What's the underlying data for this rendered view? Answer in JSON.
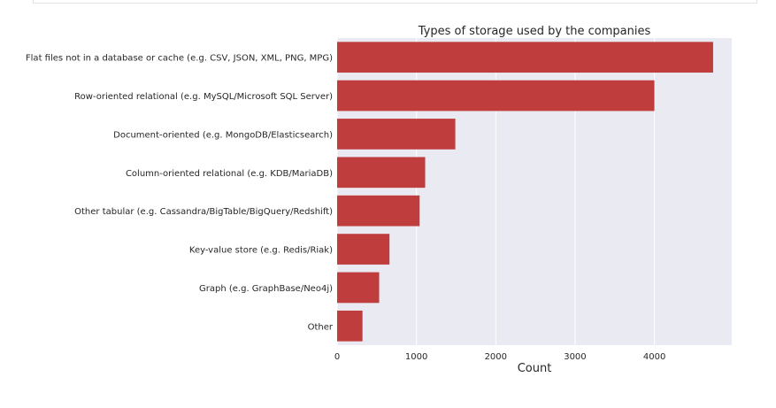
{
  "chart_data": {
    "type": "bar",
    "orientation": "horizontal",
    "title": "Types of storage used by the companies",
    "xlabel": "Count",
    "ylabel": "",
    "categories": [
      "Flat files not in a database or cache (e.g. CSV, JSON, XML, PNG, MPG)",
      "Row-oriented relational (e.g. MySQL/Microsoft SQL Server)",
      "Document-oriented (e.g. MongoDB/Elasticsearch)",
      "Column-oriented relational (e.g. KDB/MariaDB)",
      "Other tabular (e.g. Cassandra/BigTable/BigQuery/Redshift)",
      "Key-value store (e.g. Redis/Riak)",
      "Graph (e.g. GraphBase/Neo4j)",
      "Other"
    ],
    "values": [
      4740,
      4000,
      1490,
      1110,
      1040,
      660,
      530,
      320
    ],
    "xlim": [
      0,
      4975
    ],
    "xticks": [
      "0",
      "1000",
      "2000",
      "3000",
      "4000"
    ],
    "grid": true,
    "colors": {
      "bar": "#c03d3e",
      "plot_background": "#eaeaf2",
      "grid": "#ffffff",
      "text": "#262626"
    }
  }
}
